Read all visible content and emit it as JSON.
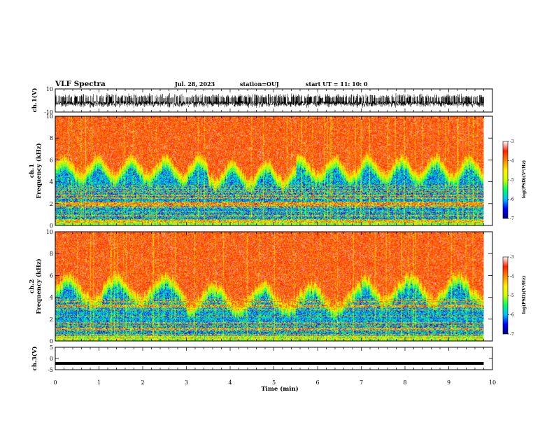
{
  "header": {
    "title": "VLF Spectra",
    "date": "Jul. 28, 2023",
    "station": "station=OUJ",
    "start": "start UT =  11: 10: 0"
  },
  "chart_data": [
    {
      "type": "line",
      "name": "ch1-waveform",
      "ylabel": "ch.1(V)",
      "ylim": [
        -10,
        10
      ],
      "yticks": [
        "10",
        "-10"
      ],
      "xlim": [
        0,
        10
      ],
      "trace": {
        "center": -1,
        "envelope": 4,
        "duration_min": 9.8
      }
    },
    {
      "type": "heatmap",
      "name": "ch1-spectrogram",
      "ylabel_line1": "ch.1",
      "ylabel_line2": "Frequency (kHz)",
      "ylim": [
        0,
        10
      ],
      "yticks": [
        "0",
        "2",
        "4",
        "6",
        "8",
        "10"
      ],
      "xlim": [
        0,
        10
      ],
      "data_extent_min": 9.8,
      "colorbar": {
        "range": [
          -7,
          -3
        ],
        "ticks": [
          "-3",
          "-4",
          "-5",
          "-6",
          "-7"
        ],
        "label": "log(PSD)(V²/Hz)"
      }
    },
    {
      "type": "heatmap",
      "name": "ch2-spectrogram",
      "ylabel_line1": "ch.2",
      "ylabel_line2": "Frequency (kHz)",
      "ylim": [
        0,
        10
      ],
      "yticks": [
        "0",
        "2",
        "4",
        "6",
        "8",
        "10"
      ],
      "xlim": [
        0,
        10
      ],
      "data_extent_min": 9.8,
      "colorbar": {
        "range": [
          -7,
          -3
        ],
        "ticks": [
          "-3",
          "-4",
          "-5",
          "-6",
          "-7"
        ],
        "label": "log(PSD)(V²/Hz)"
      }
    },
    {
      "type": "line",
      "name": "ch3-waveform",
      "ylabel": "ch.3(V)",
      "ylim": [
        -5,
        5
      ],
      "yticks": [
        "5",
        "0",
        "-5"
      ],
      "xlim": [
        0,
        10
      ],
      "trace": {
        "value": -2.2,
        "duration_min": 9.8
      }
    }
  ],
  "xaxis": {
    "label": "Time (min)",
    "ticks": [
      "0",
      "1",
      "2",
      "3",
      "4",
      "5",
      "6",
      "7",
      "8",
      "9",
      "10"
    ]
  },
  "colors": {
    "jet_stops": [
      "#00007f",
      "#0000ff",
      "#00bfff",
      "#00ff66",
      "#ccff00",
      "#ffee00",
      "#ff8800",
      "#ff2200",
      "#ffffff"
    ]
  }
}
